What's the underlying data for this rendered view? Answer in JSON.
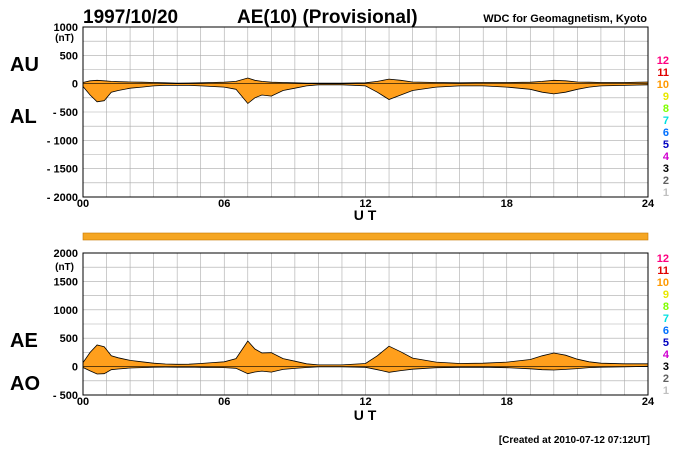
{
  "header": {
    "date": "1997/10/20",
    "title": "AE(10) (Provisional)",
    "source": "WDC for Geomagnetism, Kyoto"
  },
  "footer": {
    "created": "[Created at 2010-07-12 07:12UT]"
  },
  "colors": {
    "fill": "#ff9f1c",
    "grid": "#aaaaaa",
    "bar": "#f5a623"
  },
  "station_counts": {
    "labels": [
      "12",
      "11",
      "10",
      "9",
      "8",
      "7",
      "6",
      "5",
      "4",
      "3",
      "2",
      "1"
    ],
    "colors": [
      "#ff0080",
      "#e00000",
      "#ff9900",
      "#e8e800",
      "#80ff00",
      "#00e0e0",
      "#0070ff",
      "#0000c0",
      "#d000d0",
      "#000000",
      "#606060",
      "#c0c0c0"
    ]
  },
  "chart_data": [
    {
      "type": "area",
      "series": [
        {
          "name": "AU",
          "x": [
            0,
            0.3,
            0.6,
            0.9,
            1.2,
            1.5,
            2,
            2.5,
            3,
            3.5,
            4,
            4.5,
            5,
            5.5,
            6,
            6.5,
            7,
            7.3,
            7.6,
            8,
            8.5,
            9,
            9.5,
            10,
            11,
            12,
            12.5,
            13,
            13.5,
            14,
            15,
            16,
            17,
            18,
            19,
            19.5,
            20,
            20.5,
            21,
            21.5,
            22,
            23,
            24
          ],
          "values": [
            20,
            50,
            60,
            50,
            40,
            35,
            30,
            25,
            20,
            15,
            10,
            12,
            15,
            20,
            25,
            40,
            100,
            60,
            40,
            25,
            20,
            15,
            10,
            10,
            10,
            15,
            40,
            80,
            60,
            30,
            20,
            15,
            20,
            20,
            25,
            40,
            60,
            50,
            30,
            25,
            20,
            20,
            30
          ]
        },
        {
          "name": "AL",
          "x": [
            0,
            0.3,
            0.6,
            0.9,
            1.2,
            1.5,
            2,
            2.5,
            3,
            3.5,
            4,
            4.5,
            5,
            5.5,
            6,
            6.5,
            7,
            7.3,
            7.6,
            8,
            8.5,
            9,
            9.5,
            10,
            11,
            12,
            12.5,
            13,
            13.5,
            14,
            15,
            16,
            17,
            18,
            19,
            19.5,
            20,
            20.5,
            21,
            21.5,
            22,
            23,
            24
          ],
          "values": [
            -50,
            -200,
            -320,
            -300,
            -150,
            -120,
            -80,
            -60,
            -40,
            -30,
            -30,
            -30,
            -40,
            -50,
            -60,
            -100,
            -350,
            -250,
            -200,
            -220,
            -120,
            -80,
            -40,
            -20,
            -20,
            -40,
            -150,
            -280,
            -200,
            -120,
            -60,
            -40,
            -40,
            -60,
            -100,
            -150,
            -180,
            -150,
            -100,
            -60,
            -40,
            -30,
            -20
          ]
        }
      ],
      "ylabel": "(nT)",
      "xlabel": "U T",
      "ylim": [
        -2000,
        1000
      ],
      "yticks": [
        "1000",
        "500",
        "0",
        "- 500",
        "- 1000",
        "- 1500",
        "- 2000"
      ],
      "xticks": [
        "00",
        "06",
        "12",
        "18",
        "24"
      ],
      "xlim": [
        0,
        24
      ],
      "series_labels": [
        "AU",
        "AL"
      ]
    },
    {
      "type": "area",
      "series": [
        {
          "name": "AE",
          "x": [
            0,
            0.3,
            0.6,
            0.9,
            1.2,
            1.5,
            2,
            2.5,
            3,
            3.5,
            4,
            4.5,
            5,
            5.5,
            6,
            6.5,
            7,
            7.3,
            7.6,
            8,
            8.5,
            9,
            9.5,
            10,
            11,
            12,
            12.5,
            13,
            13.5,
            14,
            15,
            16,
            17,
            18,
            19,
            19.5,
            20,
            20.5,
            21,
            21.5,
            22,
            23,
            24
          ],
          "values": [
            70,
            250,
            380,
            350,
            190,
            155,
            110,
            85,
            60,
            45,
            40,
            42,
            55,
            70,
            85,
            140,
            450,
            310,
            240,
            245,
            140,
            95,
            50,
            30,
            30,
            55,
            190,
            360,
            260,
            150,
            80,
            55,
            60,
            80,
            125,
            190,
            240,
            200,
            130,
            85,
            60,
            50,
            50
          ]
        },
        {
          "name": "AO",
          "x": [
            0,
            0.3,
            0.6,
            0.9,
            1.2,
            1.5,
            2,
            2.5,
            3,
            3.5,
            4,
            4.5,
            5,
            5.5,
            6,
            6.5,
            7,
            7.3,
            7.6,
            8,
            8.5,
            9,
            9.5,
            10,
            11,
            12,
            12.5,
            13,
            13.5,
            14,
            15,
            16,
            17,
            18,
            19,
            19.5,
            20,
            20.5,
            21,
            21.5,
            22,
            23,
            24
          ],
          "values": [
            -15,
            -75,
            -130,
            -125,
            -55,
            -42,
            -25,
            -18,
            -10,
            -8,
            -10,
            -9,
            -12,
            -15,
            -17,
            -30,
            -125,
            -95,
            -80,
            -97,
            -50,
            -32,
            -15,
            -5,
            -5,
            -12,
            -55,
            -100,
            -70,
            -45,
            -20,
            -12,
            -10,
            -20,
            -38,
            -55,
            -60,
            -50,
            -35,
            -18,
            -10,
            -5,
            5
          ]
        }
      ],
      "ylabel": "(nT)",
      "xlabel": "U T",
      "ylim": [
        -500,
        2000
      ],
      "yticks": [
        "2000",
        "1500",
        "1000",
        "500",
        "0",
        "- 500"
      ],
      "xticks": [
        "00",
        "06",
        "12",
        "18",
        "24"
      ],
      "xlim": [
        0,
        24
      ],
      "series_labels": [
        "AE",
        "AO"
      ]
    }
  ]
}
